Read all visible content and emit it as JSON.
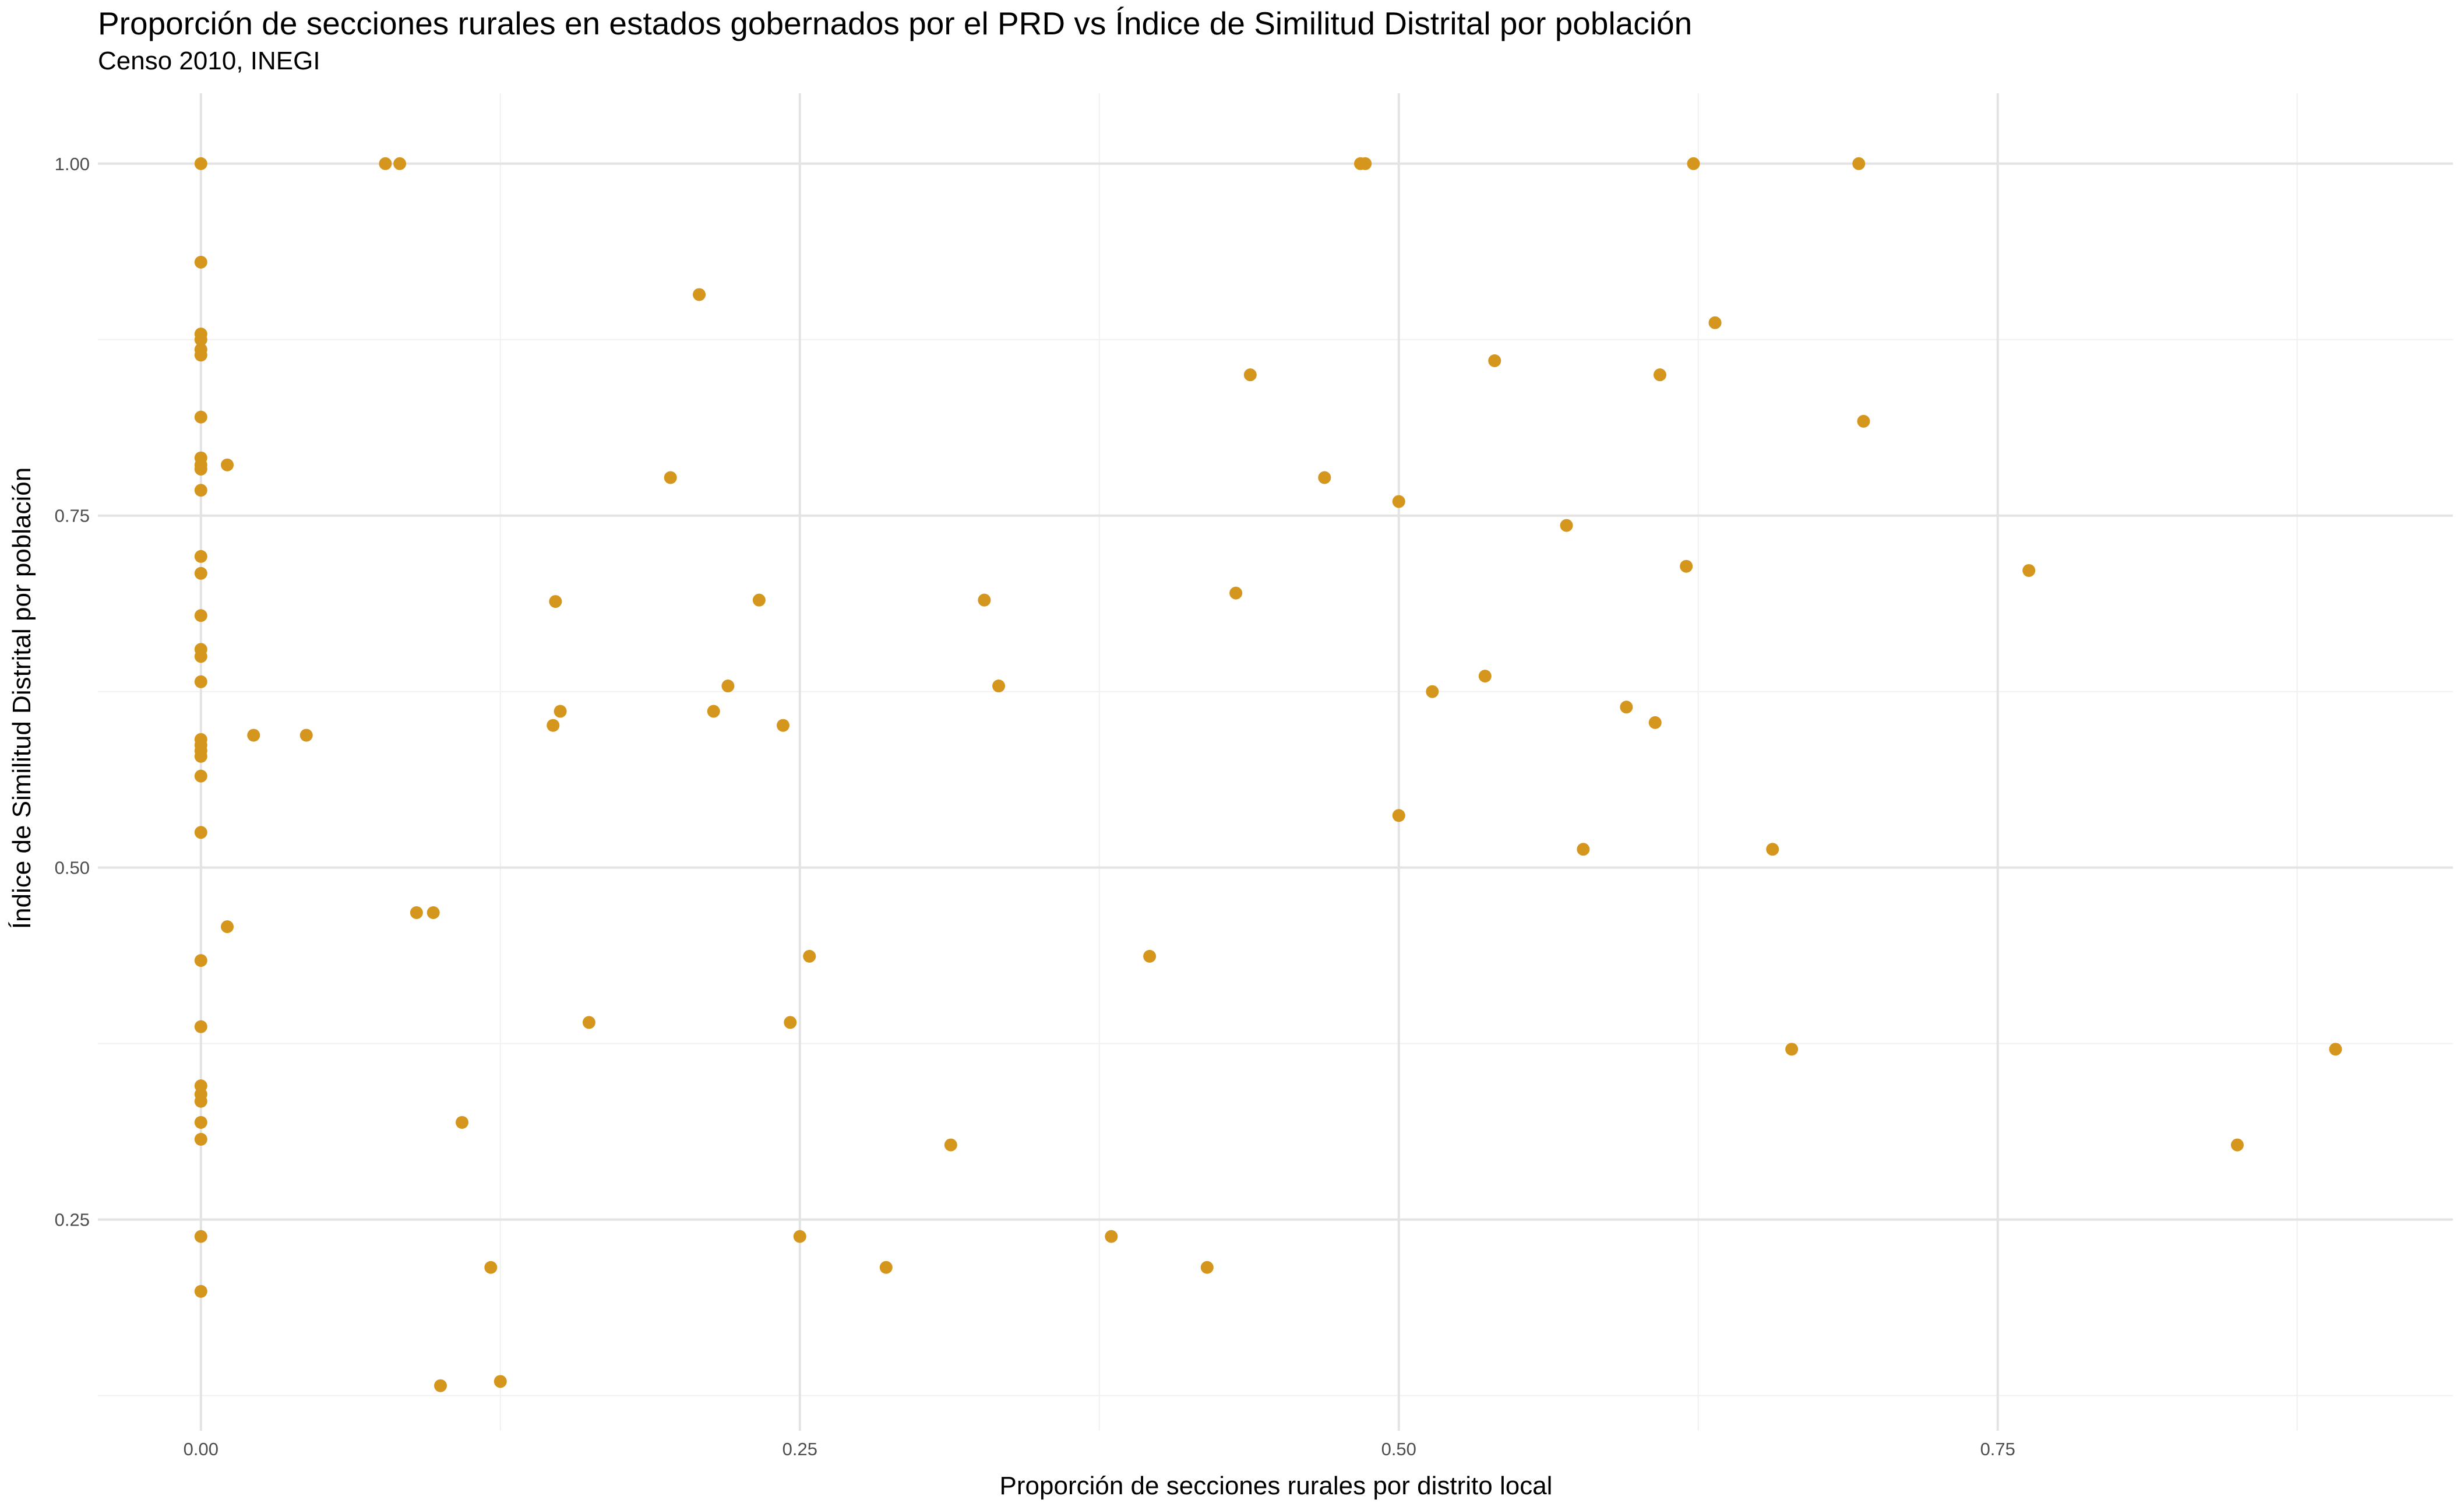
{
  "chart_data": {
    "type": "scatter",
    "title": "Proporción de secciones rurales en estados gobernados por el PRD vs Índice de Similitud Distrital por población",
    "subtitle": "Censo 2010, INEGI",
    "xlabel": "Proporción de secciones rurales por distrito local",
    "ylabel": "Índice de Similitud Distrital por población",
    "xlim": [
      -0.043,
      0.94
    ],
    "ylim": [
      0.1,
      1.05
    ],
    "x_ticks": [
      0,
      0.25,
      0.5,
      0.75
    ],
    "x_tick_labels": [
      "0.00",
      "0.25",
      "0.50",
      "0.75"
    ],
    "y_ticks": [
      0.25,
      0.5,
      0.75,
      1.0
    ],
    "y_tick_labels": [
      "0.25",
      "0.50",
      "0.75",
      "1.00"
    ],
    "grid": true,
    "point_color": "#D4961D",
    "points": [
      [
        0,
        1.0
      ],
      [
        0,
        0.93
      ],
      [
        0,
        0.879
      ],
      [
        0,
        0.875
      ],
      [
        0,
        0.868
      ],
      [
        0,
        0.864
      ],
      [
        0,
        0.82
      ],
      [
        0,
        0.791
      ],
      [
        0,
        0.786
      ],
      [
        0,
        0.783
      ],
      [
        0,
        0.768
      ],
      [
        0,
        0.721
      ],
      [
        0,
        0.709
      ],
      [
        0,
        0.679
      ],
      [
        0,
        0.655
      ],
      [
        0,
        0.65
      ],
      [
        0,
        0.632
      ],
      [
        0,
        0.591
      ],
      [
        0,
        0.587
      ],
      [
        0,
        0.583
      ],
      [
        0,
        0.579
      ],
      [
        0,
        0.565
      ],
      [
        0,
        0.525
      ],
      [
        0,
        0.434
      ],
      [
        0,
        0.387
      ],
      [
        0,
        0.345
      ],
      [
        0,
        0.339
      ],
      [
        0,
        0.334
      ],
      [
        0,
        0.319
      ],
      [
        0,
        0.307
      ],
      [
        0,
        0.238
      ],
      [
        0,
        0.199
      ],
      [
        0.011,
        0.786
      ],
      [
        0.011,
        0.458
      ],
      [
        0.022,
        0.594
      ],
      [
        0.044,
        0.594
      ],
      [
        0.077,
        1.0
      ],
      [
        0.083,
        1.0
      ],
      [
        0.09,
        0.468
      ],
      [
        0.097,
        0.468
      ],
      [
        0.1,
        0.132
      ],
      [
        0.109,
        0.319
      ],
      [
        0.121,
        0.216
      ],
      [
        0.125,
        0.135
      ],
      [
        0.147,
        0.601
      ],
      [
        0.148,
        0.689
      ],
      [
        0.15,
        0.611
      ],
      [
        0.162,
        0.39
      ],
      [
        0.196,
        0.777
      ],
      [
        0.208,
        0.907
      ],
      [
        0.214,
        0.611
      ],
      [
        0.22,
        0.629
      ],
      [
        0.233,
        0.69
      ],
      [
        0.243,
        0.601
      ],
      [
        0.246,
        0.39
      ],
      [
        0.25,
        0.238
      ],
      [
        0.254,
        0.437
      ],
      [
        0.286,
        0.216
      ],
      [
        0.313,
        0.303
      ],
      [
        0.327,
        0.69
      ],
      [
        0.333,
        0.629
      ],
      [
        0.38,
        0.238
      ],
      [
        0.396,
        0.437
      ],
      [
        0.42,
        0.216
      ],
      [
        0.432,
        0.695
      ],
      [
        0.438,
        0.85
      ],
      [
        0.469,
        0.777
      ],
      [
        0.484,
        1.0
      ],
      [
        0.486,
        1.0
      ],
      [
        0.5,
        0.76
      ],
      [
        0.5,
        0.537
      ],
      [
        0.514,
        0.625
      ],
      [
        0.536,
        0.636
      ],
      [
        0.54,
        0.86
      ],
      [
        0.57,
        0.743
      ],
      [
        0.577,
        0.513
      ],
      [
        0.595,
        0.614
      ],
      [
        0.607,
        0.603
      ],
      [
        0.609,
        0.85
      ],
      [
        0.62,
        0.714
      ],
      [
        0.623,
        1.0
      ],
      [
        0.632,
        0.887
      ],
      [
        0.656,
        0.513
      ],
      [
        0.664,
        0.371
      ],
      [
        0.692,
        1.0
      ],
      [
        0.694,
        0.817
      ],
      [
        0.763,
        0.711
      ],
      [
        0.85,
        0.303
      ],
      [
        0.891,
        0.371
      ]
    ]
  }
}
